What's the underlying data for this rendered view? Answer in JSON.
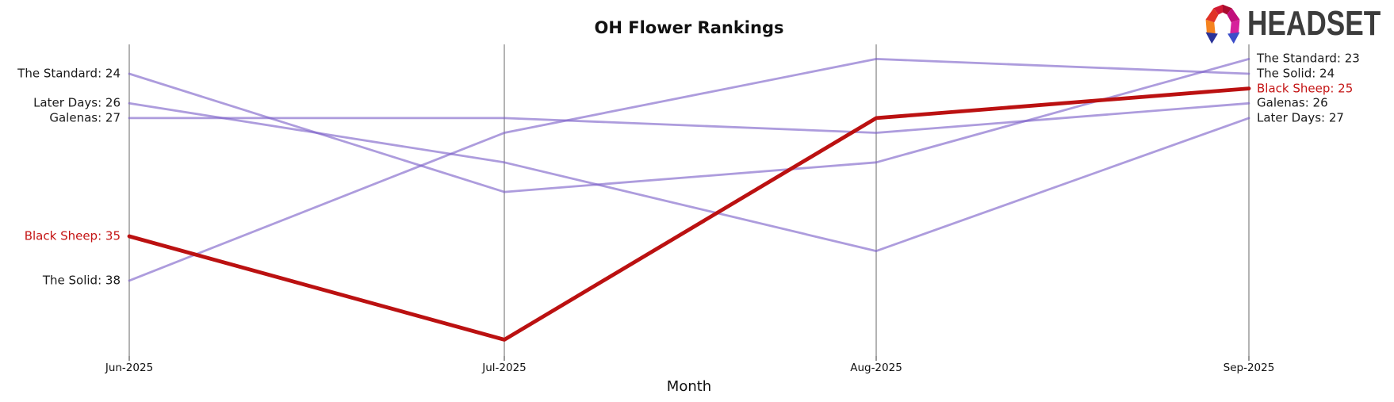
{
  "header": {
    "title": "OH Flower Rankings",
    "logo_text": "HEADSET"
  },
  "chart_data": {
    "type": "line",
    "variant": "ranking-bump",
    "title": "OH Flower Rankings",
    "xlabel": "Month",
    "x": [
      "Jun-2025",
      "Jul-2025",
      "Aug-2025",
      "Sep-2025"
    ],
    "y_inverted": true,
    "y_range_shown": [
      23,
      42
    ],
    "grid": "vertical-axis-lines-only",
    "legend_position": "edge-labels",
    "series": [
      {
        "name": "The Standard",
        "values": [
          24,
          32,
          30,
          23
        ],
        "highlight": false
      },
      {
        "name": "Later Days",
        "values": [
          26,
          30,
          36,
          27
        ],
        "highlight": false
      },
      {
        "name": "Galenas",
        "values": [
          27,
          27,
          28,
          26
        ],
        "highlight": false
      },
      {
        "name": "Black Sheep",
        "values": [
          35,
          42,
          27,
          25
        ],
        "highlight": true
      },
      {
        "name": "The Solid",
        "values": [
          38,
          28,
          23,
          24
        ],
        "highlight": false
      }
    ],
    "edge_labels": {
      "left": [
        {
          "text": "The Standard: 24",
          "value": 24,
          "red": false
        },
        {
          "text": "Later Days: 26",
          "value": 26,
          "red": false
        },
        {
          "text": "Galenas: 27",
          "value": 27,
          "red": false
        },
        {
          "text": "Black Sheep: 35",
          "value": 35,
          "red": true
        },
        {
          "text": "The Solid: 38",
          "value": 38,
          "red": false
        }
      ],
      "right": [
        {
          "text": "The Standard: 23",
          "value": 23,
          "red": false
        },
        {
          "text": "The Solid: 24",
          "value": 24,
          "red": false
        },
        {
          "text": "Black Sheep: 25",
          "value": 25,
          "red": true
        },
        {
          "text": "Galenas: 26",
          "value": 26,
          "red": false
        },
        {
          "text": "Later Days: 27",
          "value": 27,
          "red": false
        }
      ]
    }
  },
  "colors": {
    "series_default": "#7a5fc8",
    "series_highlight": "#bb1111",
    "highlight_label": "#c41414",
    "axis_line": "#b3b3b3",
    "tick": "#333333",
    "text": "#1a1a1a",
    "logo_text": "#3c3c3c",
    "logo_facets": [
      "#f5831f",
      "#e03326",
      "#d11a34",
      "#ab0c2f",
      "#c10f7c",
      "#d6219c"
    ],
    "logo_feet": [
      "#2a3399",
      "#3c4ec9"
    ]
  }
}
